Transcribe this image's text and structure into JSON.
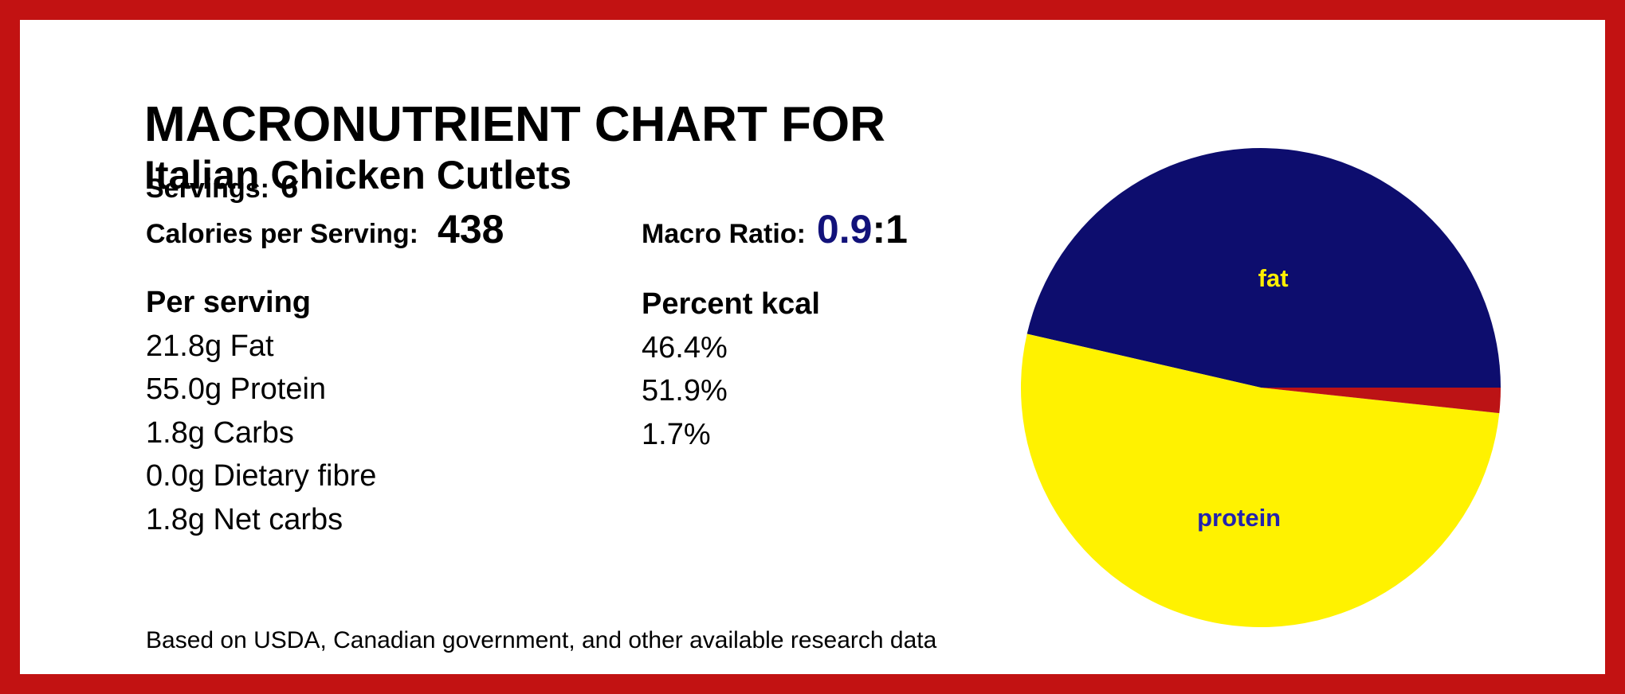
{
  "colors": {
    "border": "#C21212",
    "navy_slice": "#0D0D6E",
    "yellow_slice": "#FFF200",
    "red_slice": "#BC1315",
    "macro_value": "#12127A",
    "fat_label": "#FFEE00",
    "protein_label": "#2323AE",
    "text": "#000000",
    "background": "#FFFFFF"
  },
  "header": {
    "title": "MACRONUTRIENT CHART FOR",
    "subtitle": "Italian Chicken Cutlets"
  },
  "stats": {
    "servings_label": "Servings:",
    "servings_value": "6",
    "calories_label": "Calories per Serving:",
    "calories_value": "438",
    "macro_ratio_label": "Macro Ratio:",
    "macro_ratio_value": "0.9",
    "macro_ratio_suffix": ":1"
  },
  "per_serving": {
    "header": "Per serving",
    "rows": [
      "21.8g Fat",
      "55.0g Protein",
      "1.8g Carbs",
      "0.0g Dietary fibre",
      "1.8g Net carbs"
    ]
  },
  "percent_kcal": {
    "header": "Percent kcal",
    "rows": [
      "46.4%",
      "51.9%",
      "1.7%"
    ]
  },
  "footer": {
    "note": "Based on USDA, Canadian government, and other available research data"
  },
  "chart_data": {
    "type": "pie",
    "start_angle_deg": 0,
    "direction": "counterclockwise",
    "legend": "none",
    "slices": [
      {
        "label": "fat",
        "value": 46.4,
        "color": "#0D0D6E",
        "label_color": "#FFEE00",
        "label_distance": 0.46,
        "show_label": true
      },
      {
        "label": "protein",
        "value": 51.9,
        "color": "#FFF200",
        "label_color": "#2323AE",
        "label_distance": 0.55,
        "show_label": true
      },
      {
        "label": "carbs",
        "value": 1.7,
        "color": "#BC1315",
        "label_color": "#000000",
        "label_distance": 0.5,
        "show_label": false
      }
    ]
  }
}
